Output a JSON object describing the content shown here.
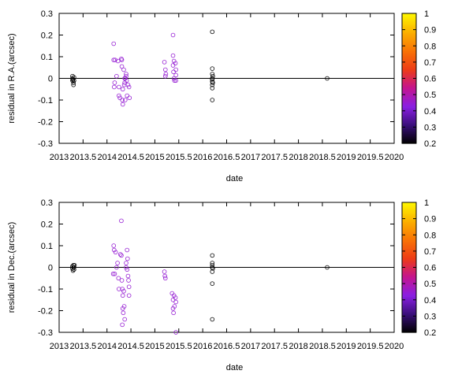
{
  "chart_data": [
    {
      "type": "scatter",
      "xlabel": "date",
      "ylabel": "residual in R.A.(arcsec)",
      "xlim": [
        2013,
        2020
      ],
      "ylim": [
        -0.3,
        0.3
      ],
      "xticks": [
        "2013",
        "2013.5",
        "2014",
        "2014.5",
        "2015",
        "2015.5",
        "2016",
        "2016.5",
        "2017",
        "2017.5",
        "2018",
        "2018.5",
        "2019",
        "2019.5",
        "2020"
      ],
      "yticks": [
        "0.3",
        "0.2",
        "0.1",
        "0",
        "-0.1",
        "-0.2",
        "-0.3"
      ],
      "zero_line": true,
      "points": [
        {
          "x": 2013.28,
          "y": 0.01,
          "c": 0.2
        },
        {
          "x": 2013.28,
          "y": 0.0,
          "c": 0.2
        },
        {
          "x": 2013.28,
          "y": -0.01,
          "c": 0.2
        },
        {
          "x": 2013.29,
          "y": -0.005,
          "c": 0.2
        },
        {
          "x": 2013.3,
          "y": -0.02,
          "c": 0.2
        },
        {
          "x": 2013.3,
          "y": -0.03,
          "c": 0.2
        },
        {
          "x": 2013.31,
          "y": -0.01,
          "c": 0.2
        },
        {
          "x": 2013.31,
          "y": 0.005,
          "c": 0.2
        },
        {
          "x": 2014.14,
          "y": 0.16,
          "c": 0.45
        },
        {
          "x": 2014.14,
          "y": 0.085,
          "c": 0.45
        },
        {
          "x": 2014.17,
          "y": 0.085,
          "c": 0.45
        },
        {
          "x": 2014.2,
          "y": 0.01,
          "c": 0.45
        },
        {
          "x": 2014.16,
          "y": -0.02,
          "c": 0.45
        },
        {
          "x": 2014.15,
          "y": -0.04,
          "c": 0.45
        },
        {
          "x": 2014.23,
          "y": 0.08,
          "c": 0.45
        },
        {
          "x": 2014.25,
          "y": -0.04,
          "c": 0.45
        },
        {
          "x": 2014.25,
          "y": -0.08,
          "c": 0.45
        },
        {
          "x": 2014.27,
          "y": -0.09,
          "c": 0.45
        },
        {
          "x": 2014.3,
          "y": 0.09,
          "c": 0.45
        },
        {
          "x": 2014.31,
          "y": 0.085,
          "c": 0.45
        },
        {
          "x": 2014.31,
          "y": 0.055,
          "c": 0.45
        },
        {
          "x": 2014.32,
          "y": -0.1,
          "c": 0.45
        },
        {
          "x": 2014.33,
          "y": -0.12,
          "c": 0.45
        },
        {
          "x": 2014.33,
          "y": -0.05,
          "c": 0.45
        },
        {
          "x": 2014.35,
          "y": 0.04,
          "c": 0.45
        },
        {
          "x": 2014.36,
          "y": -0.03,
          "c": 0.45
        },
        {
          "x": 2014.37,
          "y": -0.02,
          "c": 0.45
        },
        {
          "x": 2014.37,
          "y": 0.0,
          "c": 0.45
        },
        {
          "x": 2014.38,
          "y": -0.1,
          "c": 0.45
        },
        {
          "x": 2014.4,
          "y": 0.02,
          "c": 0.45
        },
        {
          "x": 2014.4,
          "y": 0.01,
          "c": 0.45
        },
        {
          "x": 2014.41,
          "y": -0.01,
          "c": 0.45
        },
        {
          "x": 2014.42,
          "y": -0.08,
          "c": 0.45
        },
        {
          "x": 2014.44,
          "y": -0.03,
          "c": 0.45
        },
        {
          "x": 2014.46,
          "y": -0.04,
          "c": 0.45
        },
        {
          "x": 2014.47,
          "y": -0.09,
          "c": 0.45
        },
        {
          "x": 2014.38,
          "y": 0.0,
          "c": 0.45
        },
        {
          "x": 2015.2,
          "y": 0.075,
          "c": 0.45
        },
        {
          "x": 2015.22,
          "y": 0.04,
          "c": 0.45
        },
        {
          "x": 2015.22,
          "y": 0.01,
          "c": 0.45
        },
        {
          "x": 2015.23,
          "y": 0.02,
          "c": 0.45
        },
        {
          "x": 2015.38,
          "y": 0.2,
          "c": 0.45
        },
        {
          "x": 2015.38,
          "y": 0.105,
          "c": 0.45
        },
        {
          "x": 2015.4,
          "y": 0.08,
          "c": 0.45
        },
        {
          "x": 2015.38,
          "y": 0.06,
          "c": 0.45
        },
        {
          "x": 2015.39,
          "y": 0.03,
          "c": 0.45
        },
        {
          "x": 2015.4,
          "y": 0.0,
          "c": 0.45
        },
        {
          "x": 2015.41,
          "y": -0.01,
          "c": 0.45
        },
        {
          "x": 2015.43,
          "y": 0.07,
          "c": 0.45
        },
        {
          "x": 2015.44,
          "y": 0.04,
          "c": 0.45
        },
        {
          "x": 2015.44,
          "y": 0.015,
          "c": 0.45
        },
        {
          "x": 2015.44,
          "y": -0.01,
          "c": 0.45
        },
        {
          "x": 2016.2,
          "y": 0.215,
          "c": 0.2
        },
        {
          "x": 2016.2,
          "y": 0.045,
          "c": 0.2
        },
        {
          "x": 2016.2,
          "y": 0.02,
          "c": 0.2
        },
        {
          "x": 2016.2,
          "y": 0.0,
          "c": 0.2
        },
        {
          "x": 2016.2,
          "y": -0.005,
          "c": 0.2
        },
        {
          "x": 2016.2,
          "y": -0.015,
          "c": 0.2
        },
        {
          "x": 2016.21,
          "y": -0.02,
          "c": 0.2
        },
        {
          "x": 2016.2,
          "y": -0.03,
          "c": 0.2
        },
        {
          "x": 2016.2,
          "y": -0.045,
          "c": 0.2
        },
        {
          "x": 2016.2,
          "y": -0.1,
          "c": 0.2
        },
        {
          "x": 2016.21,
          "y": 0.01,
          "c": 0.2
        },
        {
          "x": 2018.6,
          "y": 0.0,
          "c": 0.2
        }
      ]
    },
    {
      "type": "scatter",
      "xlabel": "date",
      "ylabel": "residual in Dec.(arcsec)",
      "xlim": [
        2013,
        2020
      ],
      "ylim": [
        -0.3,
        0.3
      ],
      "xticks": [
        "2013",
        "2013.5",
        "2014",
        "2014.5",
        "2015",
        "2015.5",
        "2016",
        "2016.5",
        "2017",
        "2017.5",
        "2018",
        "2018.5",
        "2019",
        "2019.5",
        "2020"
      ],
      "yticks": [
        "0.3",
        "0.2",
        "0.1",
        "0",
        "-0.1",
        "-0.2",
        "-0.3"
      ],
      "zero_line": true,
      "points": [
        {
          "x": 2013.28,
          "y": 0.005,
          "c": 0.2
        },
        {
          "x": 2013.28,
          "y": -0.005,
          "c": 0.2
        },
        {
          "x": 2013.29,
          "y": -0.015,
          "c": 0.2
        },
        {
          "x": 2013.3,
          "y": 0.01,
          "c": 0.2
        },
        {
          "x": 2013.31,
          "y": 0.0,
          "c": 0.2
        },
        {
          "x": 2013.31,
          "y": -0.01,
          "c": 0.2
        },
        {
          "x": 2013.32,
          "y": 0.01,
          "c": 0.2
        },
        {
          "x": 2014.14,
          "y": 0.1,
          "c": 0.45
        },
        {
          "x": 2014.15,
          "y": 0.08,
          "c": 0.45
        },
        {
          "x": 2014.13,
          "y": -0.03,
          "c": 0.45
        },
        {
          "x": 2014.16,
          "y": -0.03,
          "c": 0.45
        },
        {
          "x": 2014.18,
          "y": 0.07,
          "c": 0.45
        },
        {
          "x": 2014.2,
          "y": 0.0,
          "c": 0.45
        },
        {
          "x": 2014.22,
          "y": 0.02,
          "c": 0.45
        },
        {
          "x": 2014.24,
          "y": -0.05,
          "c": 0.45
        },
        {
          "x": 2014.25,
          "y": -0.1,
          "c": 0.45
        },
        {
          "x": 2014.28,
          "y": 0.06,
          "c": 0.45
        },
        {
          "x": 2014.3,
          "y": 0.055,
          "c": 0.45
        },
        {
          "x": 2014.3,
          "y": 0.215,
          "c": 0.45
        },
        {
          "x": 2014.31,
          "y": -0.06,
          "c": 0.45
        },
        {
          "x": 2014.32,
          "y": -0.1,
          "c": 0.45
        },
        {
          "x": 2014.33,
          "y": -0.13,
          "c": 0.45
        },
        {
          "x": 2014.33,
          "y": -0.19,
          "c": 0.45
        },
        {
          "x": 2014.34,
          "y": -0.21,
          "c": 0.45
        },
        {
          "x": 2014.32,
          "y": -0.265,
          "c": 0.45
        },
        {
          "x": 2014.35,
          "y": -0.11,
          "c": 0.45
        },
        {
          "x": 2014.36,
          "y": -0.18,
          "c": 0.45
        },
        {
          "x": 2014.4,
          "y": 0.02,
          "c": 0.45
        },
        {
          "x": 2014.4,
          "y": 0.0,
          "c": 0.45
        },
        {
          "x": 2014.42,
          "y": -0.01,
          "c": 0.45
        },
        {
          "x": 2014.42,
          "y": 0.08,
          "c": 0.45
        },
        {
          "x": 2014.43,
          "y": 0.04,
          "c": 0.45
        },
        {
          "x": 2014.44,
          "y": -0.04,
          "c": 0.45
        },
        {
          "x": 2014.45,
          "y": -0.06,
          "c": 0.45
        },
        {
          "x": 2014.46,
          "y": -0.09,
          "c": 0.45
        },
        {
          "x": 2014.46,
          "y": -0.13,
          "c": 0.45
        },
        {
          "x": 2014.37,
          "y": -0.24,
          "c": 0.45
        },
        {
          "x": 2015.2,
          "y": -0.02,
          "c": 0.45
        },
        {
          "x": 2015.21,
          "y": -0.04,
          "c": 0.45
        },
        {
          "x": 2015.22,
          "y": -0.05,
          "c": 0.45
        },
        {
          "x": 2015.36,
          "y": -0.12,
          "c": 0.45
        },
        {
          "x": 2015.38,
          "y": -0.15,
          "c": 0.45
        },
        {
          "x": 2015.38,
          "y": -0.19,
          "c": 0.45
        },
        {
          "x": 2015.39,
          "y": -0.21,
          "c": 0.45
        },
        {
          "x": 2015.4,
          "y": -0.13,
          "c": 0.45
        },
        {
          "x": 2015.41,
          "y": -0.18,
          "c": 0.45
        },
        {
          "x": 2015.43,
          "y": -0.14,
          "c": 0.45
        },
        {
          "x": 2015.44,
          "y": -0.16,
          "c": 0.45
        },
        {
          "x": 2015.44,
          "y": -0.3,
          "c": 0.45
        },
        {
          "x": 2016.2,
          "y": 0.055,
          "c": 0.2
        },
        {
          "x": 2016.2,
          "y": 0.02,
          "c": 0.2
        },
        {
          "x": 2016.2,
          "y": 0.01,
          "c": 0.2
        },
        {
          "x": 2016.2,
          "y": 0.0,
          "c": 0.2
        },
        {
          "x": 2016.21,
          "y": -0.005,
          "c": 0.2
        },
        {
          "x": 2016.2,
          "y": -0.02,
          "c": 0.2
        },
        {
          "x": 2016.2,
          "y": -0.075,
          "c": 0.2
        },
        {
          "x": 2016.2,
          "y": -0.24,
          "c": 0.2
        },
        {
          "x": 2018.6,
          "y": 0.0,
          "c": 0.2
        }
      ]
    }
  ],
  "colorbar": {
    "range": [
      0.2,
      1.0
    ],
    "ticks": [
      "1",
      "0.9",
      "0.8",
      "0.7",
      "0.6",
      "0.5",
      "0.4",
      "0.3",
      "0.2"
    ],
    "palette": [
      "#000000",
      "#3a0f7a",
      "#8a1fe3",
      "#c4148f",
      "#ed3c16",
      "#f97306",
      "#fbb000",
      "#fff700"
    ]
  }
}
